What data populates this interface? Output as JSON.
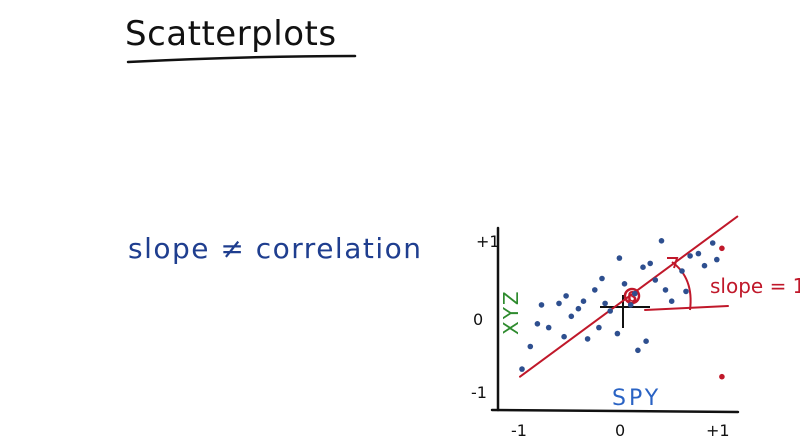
{
  "title": "Scatterplots",
  "subtitle": "slope ≠ correlation",
  "axis_labels": {
    "x": "SPY",
    "y": "XYZ"
  },
  "ticks": {
    "x_min": "-1",
    "x_mid": "0",
    "x_max": "+1",
    "y_min": "-1",
    "y_mid": "0",
    "y_max": "+1"
  },
  "annotation": "slope = 1",
  "fit_line_label": "β",
  "colors": {
    "ink": "#111111",
    "points": "#2e4f8f",
    "outliers": "#c0182a",
    "fit_line": "#c0182a",
    "spy_label": "#2a63c4",
    "xyz_label": "#2e8b2e",
    "subtitle": "#1f3e8f"
  },
  "chart_data": {
    "type": "scatter",
    "title": "",
    "xlabel": "SPY",
    "ylabel": "XYZ",
    "xlim": [
      -1,
      1
    ],
    "ylim": [
      -1,
      1
    ],
    "grid": false,
    "series": [
      {
        "name": "",
        "points": [
          [
            -0.98,
            -0.75
          ],
          [
            -0.9,
            -0.45
          ],
          [
            -0.83,
            -0.15
          ],
          [
            -0.79,
            0.1
          ],
          [
            -0.72,
            -0.2
          ],
          [
            -0.62,
            0.12
          ],
          [
            -0.57,
            -0.32
          ],
          [
            -0.55,
            0.22
          ],
          [
            -0.5,
            -0.05
          ],
          [
            -0.43,
            0.05
          ],
          [
            -0.38,
            0.15
          ],
          [
            -0.34,
            -0.35
          ],
          [
            -0.27,
            0.3
          ],
          [
            -0.23,
            -0.2
          ],
          [
            -0.2,
            0.45
          ],
          [
            -0.17,
            0.12
          ],
          [
            -0.12,
            0.02
          ],
          [
            -0.05,
            -0.28
          ],
          [
            -0.03,
            0.72
          ],
          [
            0.02,
            0.38
          ],
          [
            0.08,
            0.1
          ],
          [
            0.12,
            0.25
          ],
          [
            0.15,
            -0.5
          ],
          [
            0.2,
            0.6
          ],
          [
            0.23,
            -0.38
          ],
          [
            0.27,
            0.65
          ],
          [
            0.32,
            0.43
          ],
          [
            0.38,
            0.95
          ],
          [
            0.42,
            0.3
          ],
          [
            0.48,
            0.15
          ],
          [
            0.58,
            0.55
          ],
          [
            0.62,
            0.28
          ],
          [
            0.66,
            0.75
          ],
          [
            0.74,
            0.78
          ],
          [
            0.8,
            0.62
          ],
          [
            0.88,
            0.92
          ],
          [
            0.92,
            0.7
          ]
        ]
      },
      {
        "name": "",
        "points": [
          [
            0.97,
            0.85
          ],
          [
            0.97,
            -0.85
          ]
        ]
      }
    ],
    "fit_line": {
      "slope": 1,
      "intercept": 0.15
    }
  }
}
